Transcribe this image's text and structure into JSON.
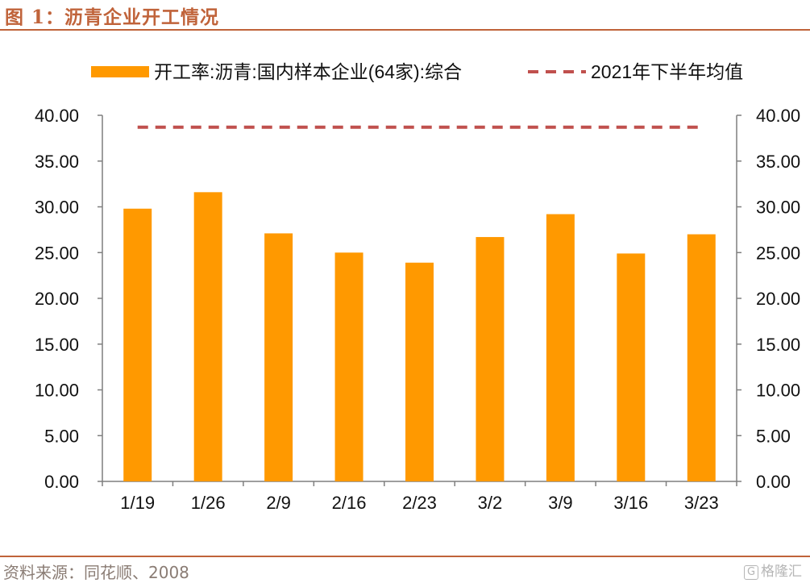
{
  "figure": {
    "title": "图 1：沥青企业开工情况",
    "source": "资料来源：同花顺、2008",
    "watermark_icon": "G",
    "watermark": "格隆汇"
  },
  "colors": {
    "accent": "#c0633a",
    "bar": "#ff9900",
    "dashed": "#c0504d",
    "axis": "#7f7f7f"
  },
  "chart_data": {
    "type": "bar",
    "categories": [
      "1/19",
      "1/26",
      "2/9",
      "2/16",
      "2/23",
      "3/2",
      "3/9",
      "3/16",
      "3/23"
    ],
    "series": [
      {
        "name": "开工率:沥青:国内样本企业(64家):综合",
        "type": "bar",
        "values": [
          29.8,
          31.6,
          27.1,
          25.0,
          23.9,
          26.7,
          29.2,
          24.9,
          27.0
        ]
      },
      {
        "name": "2021年下半年均值",
        "type": "line",
        "style": "dashed",
        "values": [
          38.7,
          38.7,
          38.7,
          38.7,
          38.7,
          38.7,
          38.7,
          38.7,
          38.7
        ]
      }
    ],
    "ylim": [
      0,
      40
    ],
    "y_ticks": [
      "0.00",
      "5.00",
      "10.00",
      "15.00",
      "20.00",
      "25.00",
      "30.00",
      "35.00",
      "40.00"
    ],
    "y2_ticks": [
      "0.00",
      "5.00",
      "10.00",
      "15.00",
      "20.00",
      "25.00",
      "30.00",
      "35.00",
      "40.00"
    ],
    "grid": false,
    "legend_position": "top"
  }
}
